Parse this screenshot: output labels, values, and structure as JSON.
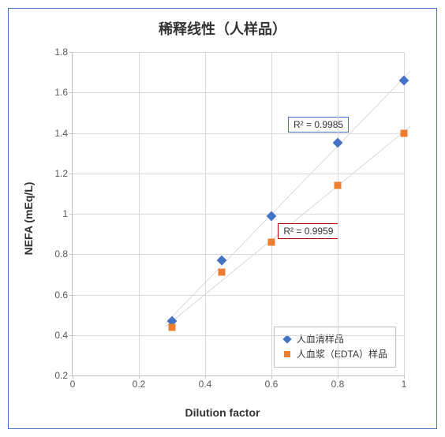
{
  "chart": {
    "type": "scatter",
    "title": "稀释线性（人样品）",
    "title_fontsize": 18,
    "background_color": "#ffffff",
    "border_color": "#4472c4",
    "x_axis": {
      "label": "Dilution factor",
      "label_fontsize": 14,
      "min": 0,
      "max": 1,
      "tick_step": 0.2,
      "ticks": [
        "0",
        "0.2",
        "0.4",
        "0.6",
        "0.8",
        "1"
      ]
    },
    "y_axis": {
      "label": "NEFA (mEq/L)",
      "label_fontsize": 14,
      "min": 0.2,
      "max": 1.8,
      "tick_step": 0.2,
      "ticks": [
        "0.2",
        "0.4",
        "0.6",
        "0.8",
        "1",
        "1.2",
        "1.4",
        "1.6",
        "1.8"
      ]
    },
    "grid_color": "#d9d9d9",
    "axis_color": "#bfbfbf",
    "tick_label_color": "#595959",
    "tick_fontsize": 12,
    "series": [
      {
        "name": "人血清样品",
        "marker": "diamond",
        "color": "#4472c4",
        "marker_size": 9,
        "data": [
          {
            "x": 0.3,
            "y": 0.47
          },
          {
            "x": 0.45,
            "y": 0.77
          },
          {
            "x": 0.6,
            "y": 0.99
          },
          {
            "x": 0.8,
            "y": 1.35
          },
          {
            "x": 1.0,
            "y": 1.66
          }
        ],
        "trend": {
          "color": "#595959",
          "width": 1,
          "r2_label": "R² = 0.9985",
          "r2_box_color": "#4472c4"
        }
      },
      {
        "name": "人血浆（EDTA）样品",
        "marker": "square",
        "color": "#ed7d31",
        "marker_size": 9,
        "data": [
          {
            "x": 0.3,
            "y": 0.44
          },
          {
            "x": 0.45,
            "y": 0.71
          },
          {
            "x": 0.6,
            "y": 0.86
          },
          {
            "x": 0.8,
            "y": 1.14
          },
          {
            "x": 1.0,
            "y": 1.4
          }
        ],
        "trend": {
          "color": "#595959",
          "width": 1,
          "r2_label": "R² = 0.9959",
          "r2_box_color": "#c00000"
        }
      }
    ],
    "legend": {
      "position": "bottom-right",
      "border_color": "#bfbfbf",
      "fontsize": 12
    },
    "r2_boxes": [
      {
        "series": 0,
        "left_pct": 65,
        "top_pct": 20
      },
      {
        "series": 1,
        "left_pct": 62,
        "top_pct": 53
      }
    ]
  }
}
